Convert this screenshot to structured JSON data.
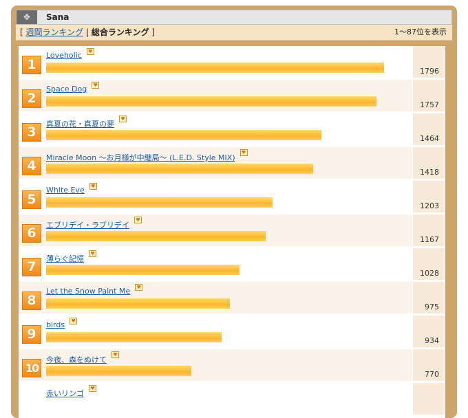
{
  "header": {
    "title": "Sana",
    "icon": "arrows-icon"
  },
  "tabs": {
    "open": "[",
    "weekly_label": "週間ランキング",
    "separator": "|",
    "overall_label": "総合ランキング",
    "close": "]"
  },
  "summary": "1〜87位を表示",
  "ranking": [
    {
      "rank": "1",
      "title": "Loveholic",
      "score": "1796"
    },
    {
      "rank": "2",
      "title": "Space Dog",
      "score": "1757"
    },
    {
      "rank": "3",
      "title": "真夏の花・真夏の夢",
      "score": "1464"
    },
    {
      "rank": "4",
      "title": "Miracle Moon ～お月様が中継局～ (L.E.D. Style MIX)",
      "score": "1418"
    },
    {
      "rank": "5",
      "title": "White Eve",
      "score": "1203"
    },
    {
      "rank": "6",
      "title": "エブリデイ・ラブリデイ",
      "score": "1167"
    },
    {
      "rank": "7",
      "title": "薄らぐ記憶",
      "score": "1028"
    },
    {
      "rank": "8",
      "title": "Let the Snow Paint Me",
      "score": "975"
    },
    {
      "rank": "9",
      "title": "birds",
      "score": "934"
    },
    {
      "rank": "10",
      "title": "今夜、森をぬけて",
      "score": "770"
    },
    {
      "rank": "",
      "title": "赤いリンゴ",
      "score": ""
    }
  ],
  "colors": {
    "frame": "#cfa56c",
    "badge": "#f18a15",
    "bar": "#fbb52d",
    "link": "#1a5ea8"
  }
}
